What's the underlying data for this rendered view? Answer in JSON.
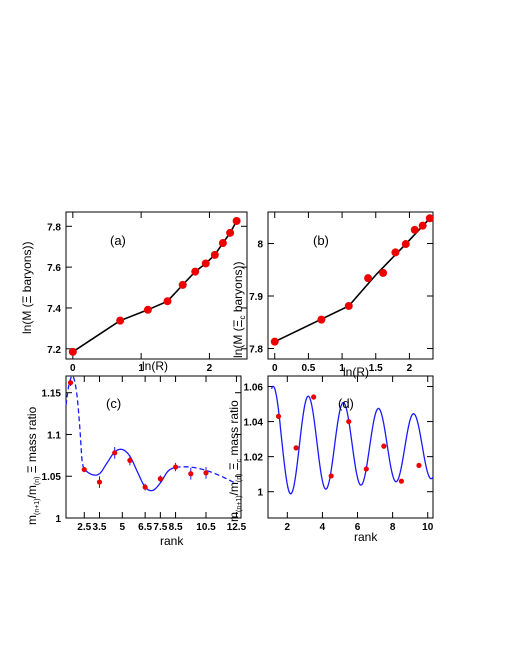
{
  "chart_data": [
    {
      "id": "a",
      "type": "scatter",
      "tag": "(a)",
      "xlabel": "ln(R)",
      "ylabel": "ln(M (Ξ baryons))",
      "xlim": [
        -0.1,
        2.55
      ],
      "ylim": [
        7.15,
        7.87
      ],
      "xticks": [
        0,
        1,
        2
      ],
      "yticks": [
        7.2,
        7.4,
        7.6,
        7.8
      ],
      "points": [
        {
          "x": 0.0,
          "y": 7.185
        },
        {
          "x": 0.693,
          "y": 7.338
        },
        {
          "x": 1.099,
          "y": 7.391
        },
        {
          "x": 1.386,
          "y": 7.433
        },
        {
          "x": 1.609,
          "y": 7.513
        },
        {
          "x": 1.792,
          "y": 7.578
        },
        {
          "x": 1.946,
          "y": 7.618
        },
        {
          "x": 2.079,
          "y": 7.66
        },
        {
          "x": 2.197,
          "y": 7.718
        },
        {
          "x": 2.303,
          "y": 7.768
        },
        {
          "x": 2.398,
          "y": 7.826
        }
      ],
      "line": [
        {
          "x": 0.0,
          "y": 7.185
        },
        {
          "x": 0.693,
          "y": 7.338
        },
        {
          "x": 1.099,
          "y": 7.391
        },
        {
          "x": 1.386,
          "y": 7.433
        },
        {
          "x": 1.609,
          "y": 7.513
        },
        {
          "x": 1.792,
          "y": 7.578
        },
        {
          "x": 1.946,
          "y": 7.618
        },
        {
          "x": 2.079,
          "y": 7.66
        },
        {
          "x": 2.197,
          "y": 7.718
        },
        {
          "x": 2.303,
          "y": 7.768
        },
        {
          "x": 2.398,
          "y": 7.826
        }
      ]
    },
    {
      "id": "b",
      "type": "scatter",
      "tag": "(b)",
      "xlabel": "ln(R)",
      "ylabel": "ln(M (Ξₑ baryons))",
      "ylabel_main": "ln(M (",
      "ylabel_sym": "Ξ",
      "ylabel_sub": "c",
      "ylabel_tail": " baryons))",
      "xlim": [
        -0.1,
        2.35
      ],
      "ylim": [
        7.78,
        8.06
      ],
      "xticks": [
        0,
        0.5,
        1,
        1.5,
        2
      ],
      "xtick_labels": [
        "0",
        "0.5",
        "1",
        "1.5",
        "2"
      ],
      "yticks": [
        7.8,
        7.9,
        8.0
      ],
      "ytick_labels": [
        "7.8",
        "7.9",
        "8"
      ],
      "points": [
        {
          "x": 0.0,
          "y": 7.813
        },
        {
          "x": 0.693,
          "y": 7.855
        },
        {
          "x": 1.099,
          "y": 7.881
        },
        {
          "x": 1.386,
          "y": 7.934
        },
        {
          "x": 1.609,
          "y": 7.944
        },
        {
          "x": 1.792,
          "y": 7.983
        },
        {
          "x": 1.946,
          "y": 7.999
        },
        {
          "x": 2.079,
          "y": 8.026
        },
        {
          "x": 2.197,
          "y": 8.034
        },
        {
          "x": 2.303,
          "y": 8.048
        }
      ],
      "line": [
        {
          "x": 0.0,
          "y": 7.813
        },
        {
          "x": 1.099,
          "y": 7.881
        },
        {
          "x": 1.5,
          "y": 7.94
        },
        {
          "x": 1.946,
          "y": 7.999
        },
        {
          "x": 2.303,
          "y": 8.048
        }
      ]
    },
    {
      "id": "c",
      "type": "scatter",
      "tag": "(c)",
      "xlabel": "rank",
      "ylabel_prefix": "m",
      "ylabel_sub1": "(n+1)",
      "ylabel_mid": "/m",
      "ylabel_sub2": "(n)",
      "ylabel_tail": " Ξ mass ratio",
      "xlim": [
        1.3,
        12.8
      ],
      "ylim": [
        1.0,
        1.17
      ],
      "xticks": [
        2.5,
        5,
        7.5,
        10,
        12.5
      ],
      "xticks_minor": [
        3.5,
        5,
        6.5,
        8.5,
        10.5
      ],
      "xtick_labels": [
        "2.5",
        "3.5",
        "5",
        "6.5",
        "7.5",
        "8.5",
        "10.5",
        "12.5"
      ],
      "yticks": [
        1.0,
        1.05,
        1.1,
        1.15
      ],
      "ytick_labels": [
        "1",
        "1.05",
        "1.1",
        "1.15"
      ],
      "points": [
        {
          "x": 1.6,
          "y": 1.162,
          "err": 0.004
        },
        {
          "x": 2.5,
          "y": 1.058,
          "err": 0.003
        },
        {
          "x": 3.5,
          "y": 1.043,
          "err": 0.007
        },
        {
          "x": 4.5,
          "y": 1.078,
          "err": 0.007
        },
        {
          "x": 5.5,
          "y": 1.069,
          "err": 0.006
        },
        {
          "x": 6.5,
          "y": 1.037,
          "err": 0.004
        },
        {
          "x": 7.5,
          "y": 1.047,
          "err": 0.004
        },
        {
          "x": 8.5,
          "y": 1.061,
          "err": 0.005
        },
        {
          "x": 9.5,
          "y": 1.053,
          "err": 0.007
        },
        {
          "x": 10.5,
          "y": 1.054,
          "err": 0.007
        }
      ],
      "fit_dashed_left": [
        {
          "x": 1.3,
          "y": 1.135
        },
        {
          "x": 1.5,
          "y": 1.16
        },
        {
          "x": 1.75,
          "y": 1.17
        },
        {
          "x": 2.0,
          "y": 1.15
        },
        {
          "x": 2.2,
          "y": 1.11
        },
        {
          "x": 2.35,
          "y": 1.07
        },
        {
          "x": 2.5,
          "y": 1.058
        }
      ],
      "fit_solid": [
        {
          "x": 2.5,
          "y": 1.058
        },
        {
          "x": 3.0,
          "y": 1.052
        },
        {
          "x": 3.5,
          "y": 1.053
        },
        {
          "x": 4.0,
          "y": 1.066
        },
        {
          "x": 4.5,
          "y": 1.079
        },
        {
          "x": 5.0,
          "y": 1.082
        },
        {
          "x": 5.5,
          "y": 1.074
        },
        {
          "x": 6.0,
          "y": 1.055
        },
        {
          "x": 6.5,
          "y": 1.037
        },
        {
          "x": 7.0,
          "y": 1.033
        },
        {
          "x": 7.5,
          "y": 1.042
        },
        {
          "x": 8.0,
          "y": 1.056
        },
        {
          "x": 8.5,
          "y": 1.061
        }
      ],
      "fit_dashed_right": [
        {
          "x": 8.5,
          "y": 1.061
        },
        {
          "x": 9.5,
          "y": 1.061
        },
        {
          "x": 10.5,
          "y": 1.057
        },
        {
          "x": 11.5,
          "y": 1.05
        },
        {
          "x": 12.5,
          "y": 1.041
        }
      ]
    },
    {
      "id": "d",
      "type": "scatter",
      "tag": "(d)",
      "xlabel": "rank",
      "ylabel_prefix": "m",
      "ylabel_sub1": "(n+1)",
      "ylabel_mid": "/m",
      "ylabel_sub2": "(n)",
      "ylabel_sym": " Ξ",
      "ylabel_symsub": "c",
      "ylabel_tail": " mass ratio",
      "xlim": [
        0.9,
        10.3
      ],
      "ylim": [
        0.985,
        1.066
      ],
      "xticks": [
        2,
        4,
        6,
        8,
        10
      ],
      "yticks": [
        1.0,
        1.02,
        1.04,
        1.06
      ],
      "ytick_labels": [
        "1",
        "1.02",
        "1.04",
        "1.06"
      ],
      "points": [
        {
          "x": 1.5,
          "y": 1.043,
          "err": 0.0015
        },
        {
          "x": 2.5,
          "y": 1.025,
          "err": 0.0012
        },
        {
          "x": 3.5,
          "y": 1.054,
          "err": 0.0015
        },
        {
          "x": 4.5,
          "y": 1.009,
          "err": 0.0012
        },
        {
          "x": 5.5,
          "y": 1.04,
          "err": 0.0012
        },
        {
          "x": 6.5,
          "y": 1.013,
          "err": 0.0015
        },
        {
          "x": 7.5,
          "y": 1.026,
          "err": 0.0015
        },
        {
          "x": 8.5,
          "y": 1.006,
          "err": 0.0008
        },
        {
          "x": 9.5,
          "y": 1.015,
          "err": 0.0008
        }
      ],
      "fit": {
        "type": "damped-oscillation",
        "x_range": [
          1.1,
          10.3
        ]
      }
    }
  ]
}
